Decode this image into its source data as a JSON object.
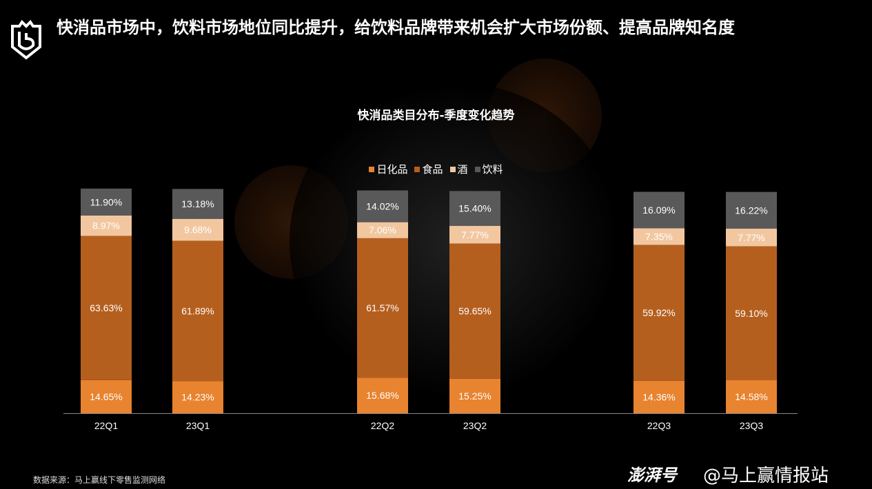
{
  "header": {
    "title": "快消品市场中，饮料市场地位同比提升，给饮料品牌带来机会扩大市场份额、提高品牌知名度"
  },
  "footer": {
    "source": "数据来源：马上赢线下零售监测网络",
    "brand": "澎湃号",
    "handle": "@马上赢情报站"
  },
  "chart_data": {
    "type": "bar",
    "stacked": true,
    "title": "快消品类目分布-季度变化趋势",
    "categories": [
      "22Q1",
      "23Q1",
      "22Q2",
      "23Q2",
      "22Q3",
      "23Q3"
    ],
    "series": [
      {
        "name": "日化品",
        "color": "#e8832f",
        "values": [
          14.65,
          14.23,
          15.68,
          15.25,
          14.36,
          14.58
        ]
      },
      {
        "name": "食品",
        "color": "#b55f1f",
        "values": [
          63.63,
          61.89,
          61.57,
          59.65,
          59.92,
          59.1
        ]
      },
      {
        "name": "酒",
        "color": "#f2c7a0",
        "values": [
          8.97,
          9.68,
          7.06,
          7.77,
          7.35,
          7.77
        ]
      },
      {
        "name": "饮料",
        "color": "#595959",
        "values": [
          11.9,
          13.18,
          14.02,
          15.4,
          16.09,
          16.22
        ]
      }
    ],
    "unit": "%",
    "legend": "top-center",
    "grid": false
  }
}
